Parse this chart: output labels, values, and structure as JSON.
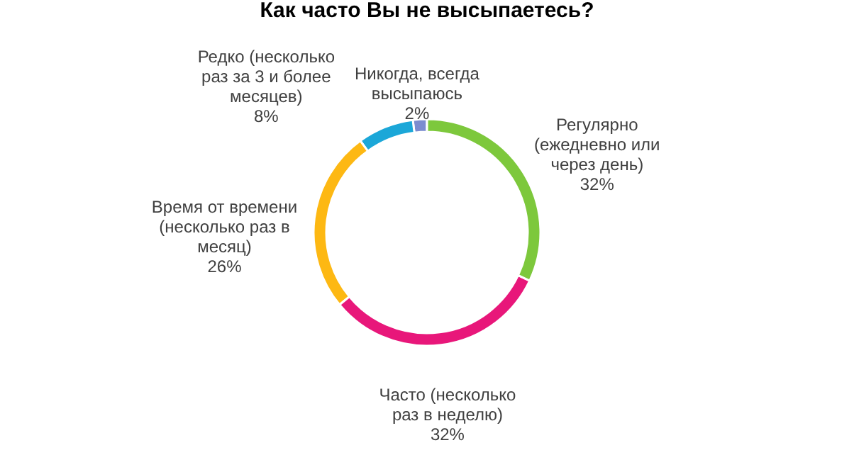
{
  "chart_data": {
    "type": "donut",
    "title": "Как часто Вы не высыпаетесь?",
    "categories": [
      "Регулярно (ежедневно или через день)",
      "Часто (несколько раз в неделю)",
      "Время от времени (несколько раз в месяц)",
      "Редко (несколько раз за 3 и более месяцев)",
      "Никогда, всегда высыпаюсь"
    ],
    "values": [
      32,
      32,
      26,
      8,
      2
    ],
    "value_labels": [
      "32%",
      "32%",
      "26%",
      "8%",
      "2%"
    ],
    "colors": [
      "#7dc83c",
      "#e8177a",
      "#fdb813",
      "#1ba7d8",
      "#7b8ccf"
    ],
    "legend": false
  }
}
